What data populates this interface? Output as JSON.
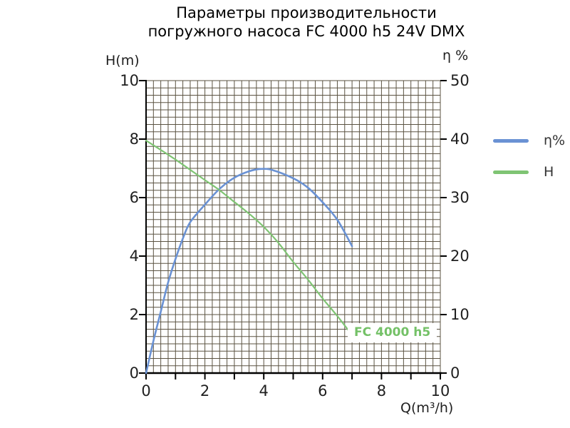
{
  "title": {
    "line1": "Параметры производительности",
    "line2": "погружного насоса FC 4000 h5 24V DMX"
  },
  "colors": {
    "eta_line": "#6a92d4",
    "h_line": "#7fc473",
    "annotation_text": "#74c167",
    "grid": "#5b5342",
    "axis": "#000000",
    "text": "#1a1a1a"
  },
  "legend": {
    "items": [
      {
        "label": "η%",
        "color": "#6a92d4"
      },
      {
        "label": "H",
        "color": "#7fc473"
      }
    ]
  },
  "chart_data": {
    "type": "line",
    "title": "Параметры производительности погружного насоса FC 4000 h5 24V DMX",
    "x_axis": {
      "label": "Q(m³/h)",
      "min": 0,
      "max": 10,
      "tick_labels": [
        "0",
        "2",
        "4",
        "6",
        "8",
        "10"
      ],
      "tick_step": 1,
      "grid_step": 0.25
    },
    "y_axis_left": {
      "label": "H(m)",
      "min": 0,
      "max": 10,
      "tick_labels": [
        "0",
        "2",
        "4",
        "6",
        "8",
        "10"
      ],
      "grid_step": 0.25
    },
    "y_axis_right": {
      "label": "η %",
      "min": 0,
      "max": 50,
      "tick_labels": [
        "0",
        "10",
        "20",
        "30",
        "40",
        "50"
      ]
    },
    "grid": true,
    "legend_position": "right",
    "annotation": {
      "text": "FC 4000 h5",
      "color": "#74c167",
      "x": 7.05,
      "y": 1.3
    },
    "series": [
      {
        "name": "η%",
        "axis": "right",
        "color": "#6a92d4",
        "stroke_width": 2.6,
        "points": [
          [
            0,
            0
          ],
          [
            0.25,
            5.5
          ],
          [
            0.5,
            10.5
          ],
          [
            0.75,
            15.5
          ],
          [
            1,
            19.5
          ],
          [
            1.25,
            23
          ],
          [
            1.5,
            25.8
          ],
          [
            2,
            28.8
          ],
          [
            2.5,
            31.5
          ],
          [
            3,
            33.4
          ],
          [
            3.5,
            34.5
          ],
          [
            3.9,
            34.9
          ],
          [
            4.3,
            34.7
          ],
          [
            5,
            33.3
          ],
          [
            5.5,
            31.7
          ],
          [
            6,
            29.2
          ],
          [
            6.5,
            26.2
          ],
          [
            7,
            21.7
          ]
        ]
      },
      {
        "name": "H",
        "axis": "left",
        "color": "#7fc473",
        "stroke_width": 2.2,
        "points": [
          [
            0,
            7.95
          ],
          [
            0.5,
            7.63
          ],
          [
            1,
            7.3
          ],
          [
            1.5,
            6.95
          ],
          [
            2,
            6.6
          ],
          [
            2.5,
            6.25
          ],
          [
            3,
            5.85
          ],
          [
            3.5,
            5.45
          ],
          [
            4,
            5.0
          ],
          [
            4.5,
            4.45
          ],
          [
            5,
            3.8
          ],
          [
            5.5,
            3.2
          ],
          [
            6,
            2.55
          ],
          [
            6.5,
            1.95
          ],
          [
            7,
            1.3
          ]
        ]
      }
    ]
  }
}
